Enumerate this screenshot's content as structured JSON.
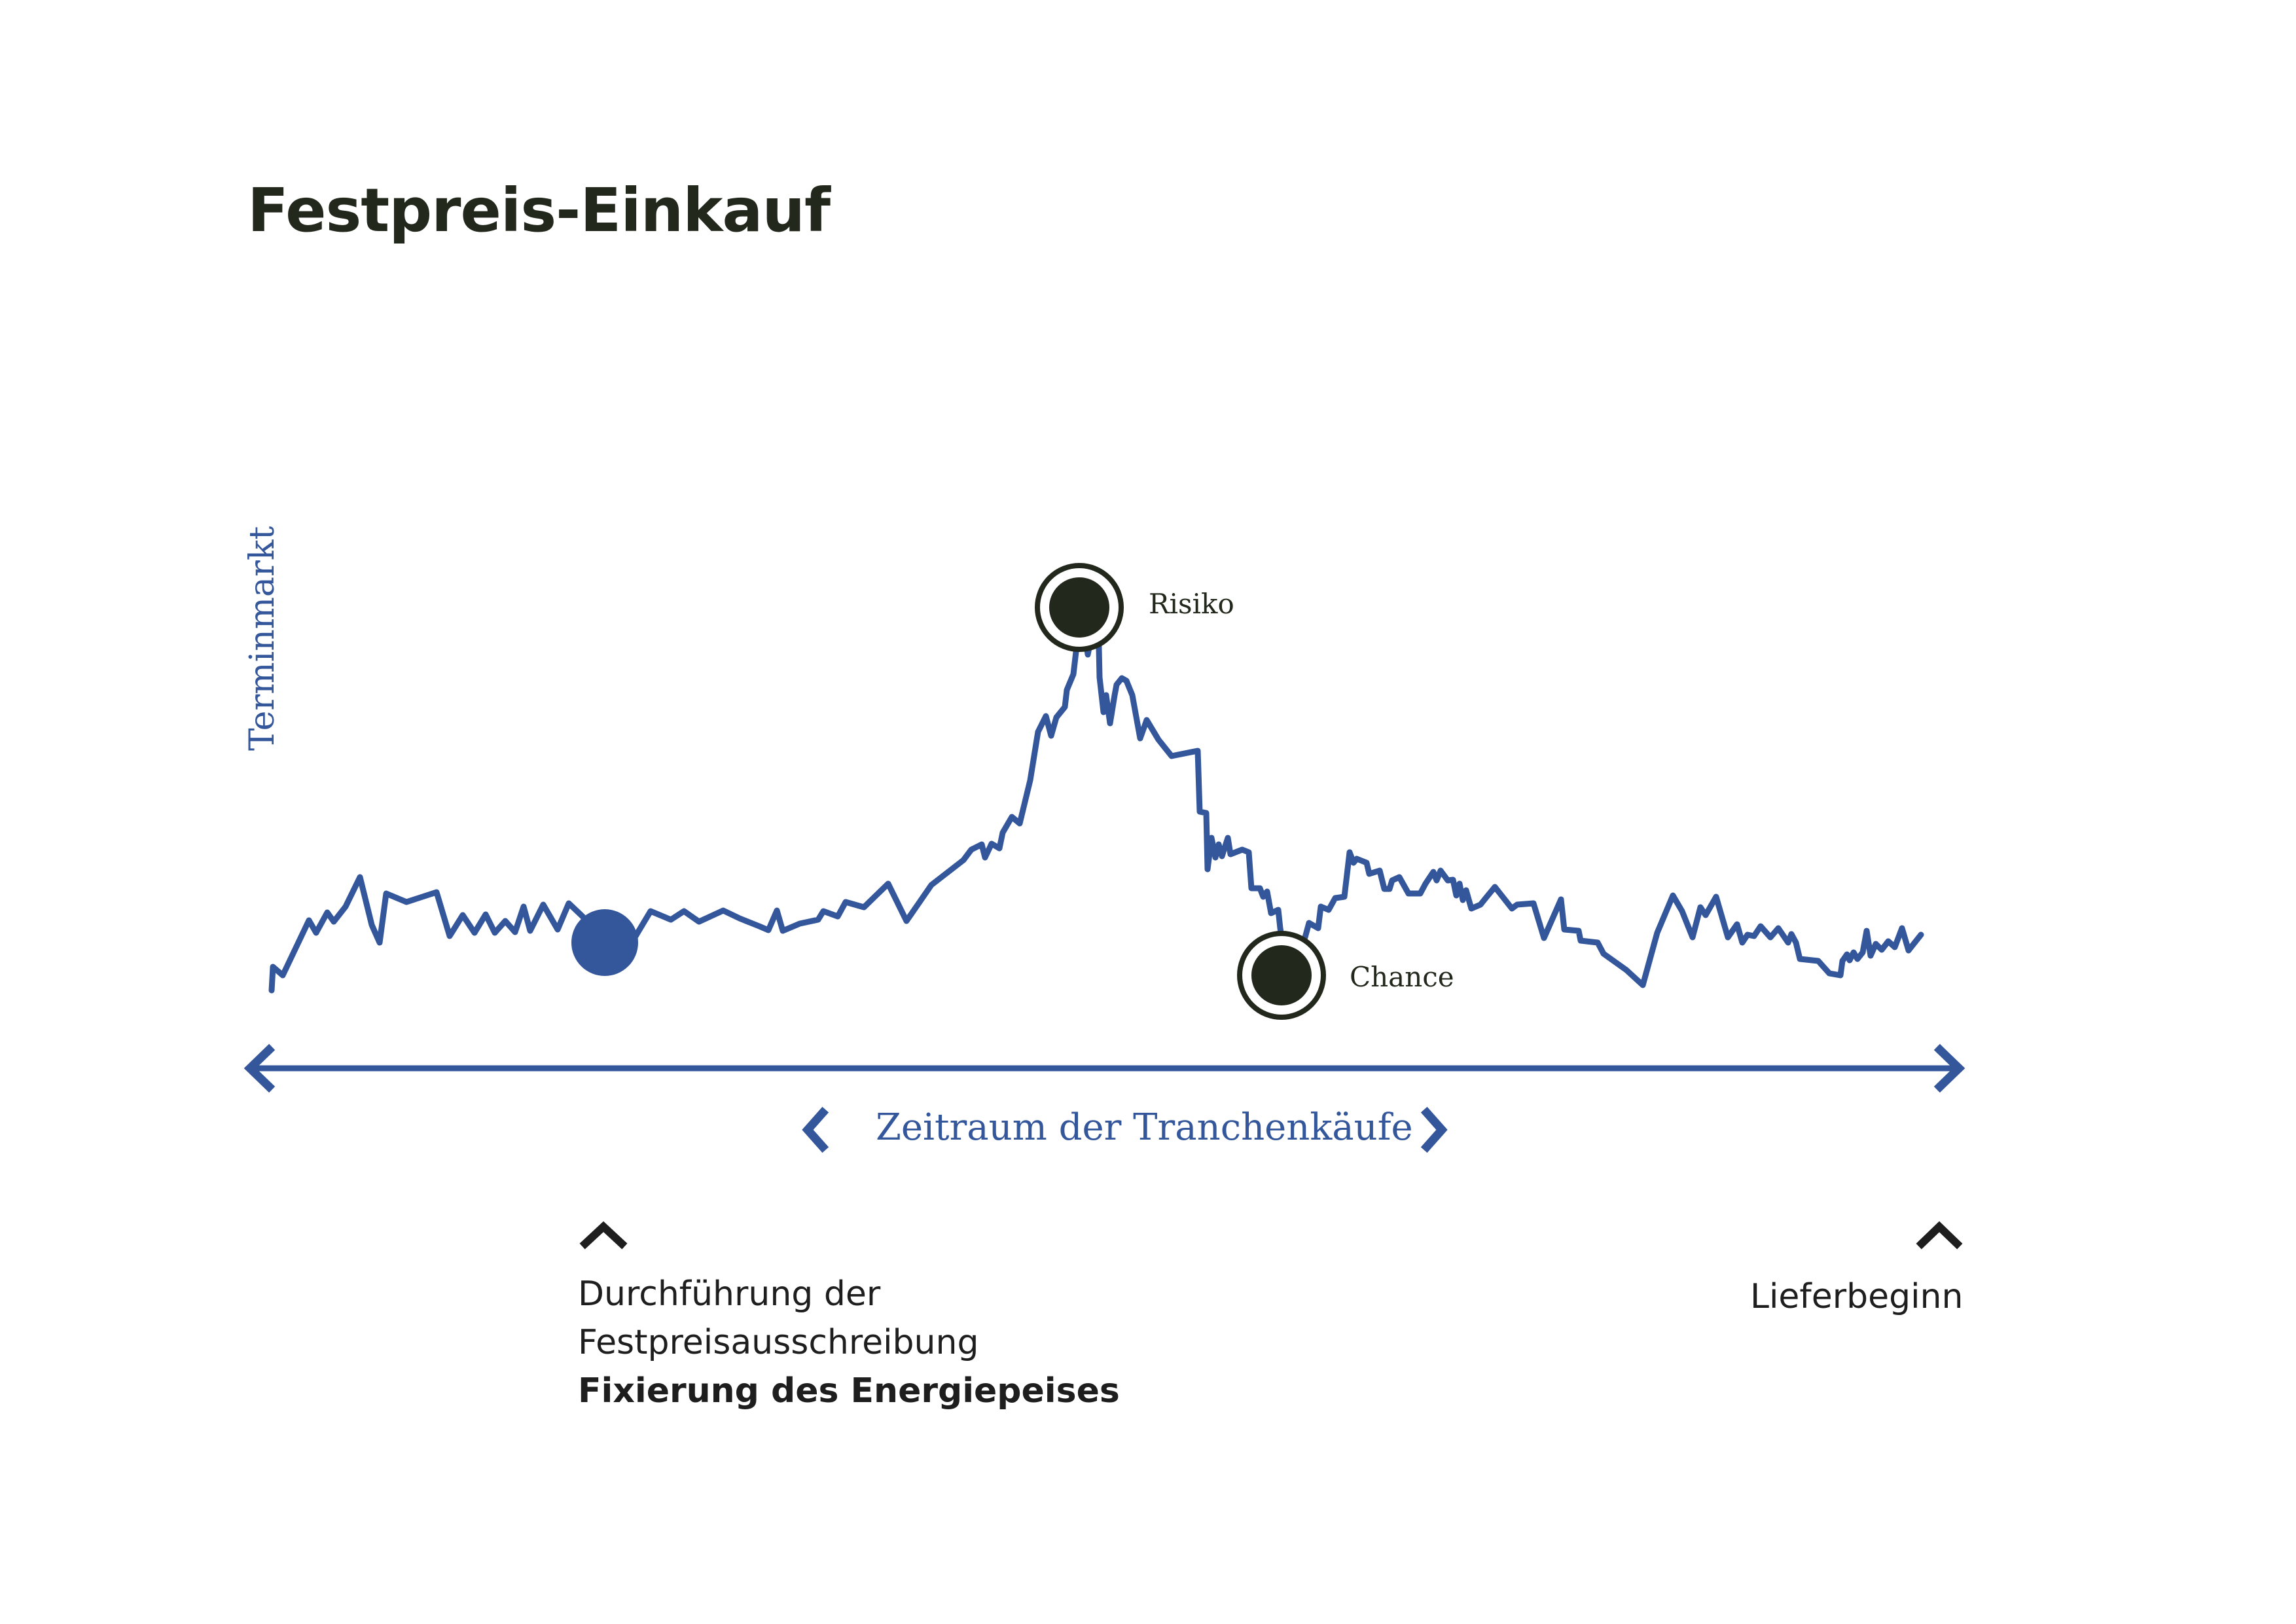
{
  "title": "Festpreis-Einkauf",
  "y_axis_label": "Terminmarkt",
  "points": {
    "risk_label": "Risiko",
    "chance_label": "Chance"
  },
  "range": {
    "label": "Zeitraum der Tranchenkäufe"
  },
  "milestones": {
    "tender": {
      "line1": "Durchführung der",
      "line2": "Festpreisausschreibung",
      "line3": "Fixierung des Energiepeises"
    },
    "delivery": {
      "label": "Lieferbeginn"
    }
  },
  "colors": {
    "accent_blue": "#34579c",
    "dark": "#22291c",
    "text": "#1e1e1e"
  }
}
